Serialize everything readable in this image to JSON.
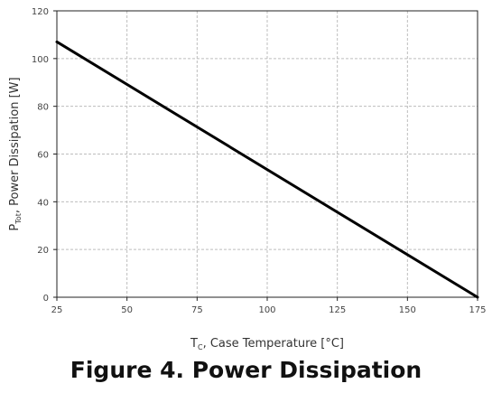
{
  "chart_data": {
    "type": "line",
    "caption": "Figure 4. Power Dissipation",
    "xlabel": {
      "main": "T",
      "sub": "C",
      "rest": ", Case Temperature [°C]"
    },
    "ylabel": {
      "main": "P",
      "sub": "Tot",
      "rest": ", Power Dissipation [W]"
    },
    "xlim": [
      25,
      175
    ],
    "ylim": [
      0,
      120
    ],
    "xticks": [
      25,
      50,
      75,
      100,
      125,
      150,
      175
    ],
    "yticks": [
      0,
      20,
      40,
      60,
      80,
      100,
      120
    ],
    "grid": true,
    "series": [
      {
        "x": [
          25,
          175
        ],
        "y": [
          107,
          0
        ],
        "color": "#000000"
      }
    ]
  }
}
